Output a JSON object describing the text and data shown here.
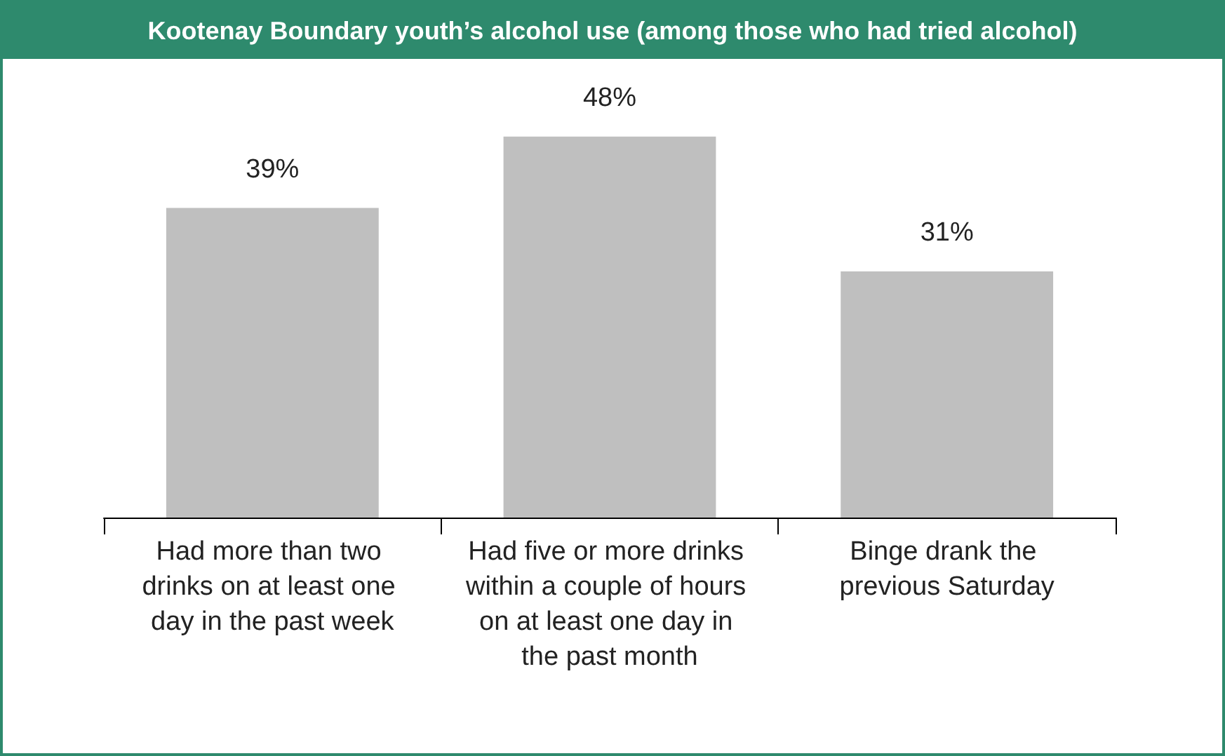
{
  "chart_data": {
    "type": "bar",
    "title": "Kootenay Boundary youth’s alcohol use (among those who had tried alcohol)",
    "categories": [
      "Had more than two drinks on at least one day in the past week",
      "Had five or more drinks within a couple of hours on at least one day in the past month",
      "Binge drank the previous Saturday"
    ],
    "values": [
      39,
      48,
      31
    ],
    "color": "#bfbfbf",
    "value_labels": [
      "39%",
      "48%",
      "31%"
    ]
  }
}
